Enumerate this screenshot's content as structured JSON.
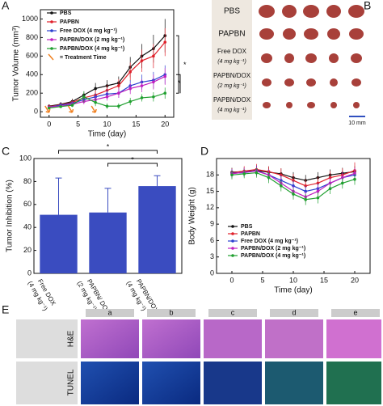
{
  "chart_data": [
    {
      "type": "line",
      "panel": "A",
      "y_label": "Tumor Volume (mm³)",
      "x_label": "Time (day)",
      "x": [
        0,
        2,
        4,
        6,
        8,
        10,
        12,
        14,
        16,
        18,
        20
      ],
      "xlim": [
        -1.5,
        21.5
      ],
      "xticks": [
        0,
        5,
        10,
        15,
        20
      ],
      "ylim": [
        -60,
        1100
      ],
      "yticks": [
        0,
        200,
        400,
        600,
        800,
        1000
      ],
      "series": [
        {
          "name": "PBS",
          "color": "#111111",
          "values": [
            60,
            80,
            110,
            180,
            250,
            280,
            310,
            480,
            600,
            680,
            820
          ],
          "errors": [
            20,
            25,
            30,
            40,
            60,
            60,
            70,
            110,
            130,
            150,
            180
          ]
        },
        {
          "name": "PAPBN",
          "color": "#e0202a",
          "values": [
            55,
            75,
            100,
            150,
            180,
            230,
            280,
            430,
            550,
            600,
            750
          ],
          "errors": [
            20,
            20,
            30,
            40,
            50,
            60,
            70,
            100,
            120,
            130,
            150
          ]
        },
        {
          "name": "Free DOX (4 mg kg⁻¹)",
          "color": "#2a3fd0",
          "values": [
            50,
            70,
            90,
            130,
            160,
            190,
            200,
            280,
            320,
            340,
            400
          ],
          "errors": [
            15,
            20,
            25,
            30,
            40,
            50,
            50,
            60,
            80,
            90,
            100
          ]
        },
        {
          "name": "PAPBN/DOX (2 mg kg⁻¹)",
          "color": "#c020c0",
          "values": [
            50,
            60,
            80,
            110,
            130,
            160,
            200,
            250,
            280,
            320,
            380
          ],
          "errors": [
            15,
            20,
            25,
            30,
            40,
            40,
            50,
            60,
            70,
            80,
            90
          ]
        },
        {
          "name": "PAPBN/DOX (4 mg kg⁻¹)",
          "color": "#20a030",
          "values": [
            40,
            55,
            70,
            160,
            100,
            60,
            60,
            110,
            150,
            160,
            200
          ],
          "errors": [
            15,
            15,
            20,
            60,
            40,
            30,
            30,
            40,
            40,
            50,
            60
          ]
        }
      ],
      "treatment_label": "= Treatment Time",
      "treatment_days": [
        0,
        4,
        8
      ],
      "treatment_color": "#f08020",
      "significance": [
        "*",
        "*"
      ]
    },
    {
      "type": "bar",
      "panel": "C",
      "y_label": "Tumor Inhibition (%)",
      "categories": [
        "Free DOX",
        "PAPBN/ DOX",
        "PAPBN/DOX"
      ],
      "category_sublabels": [
        "(4 mg kg⁻¹)",
        "(2 mg kg⁻¹)",
        "(4 mg kg⁻¹)"
      ],
      "values": [
        51,
        53,
        76
      ],
      "errors": [
        32,
        21,
        9
      ],
      "color": "#3a4cc0",
      "ylim": [
        0,
        100
      ],
      "yticks": [
        0,
        20,
        40,
        60,
        80,
        100
      ],
      "significance": [
        "*",
        "*"
      ]
    },
    {
      "type": "line",
      "panel": "D",
      "y_label": "Body Weight (g)",
      "x_label": "Time (day)",
      "x": [
        0,
        2,
        4,
        6,
        8,
        10,
        12,
        14,
        16,
        18,
        20
      ],
      "xlim": [
        -2.5,
        22.5
      ],
      "xticks": [
        0,
        5,
        10,
        15,
        20
      ],
      "ylim": [
        0,
        21
      ],
      "yticks": [
        0,
        3,
        6,
        9,
        12,
        15,
        18
      ],
      "series": [
        {
          "name": "PBS",
          "color": "#111111",
          "values": [
            18.5,
            18.6,
            18.8,
            18.5,
            18.2,
            17.5,
            17,
            17.5,
            18,
            18.3,
            18.6
          ],
          "errors": [
            0.8,
            0.8,
            0.9,
            1,
            1,
            1,
            1,
            1,
            1,
            1,
            1
          ]
        },
        {
          "name": "PAPBN",
          "color": "#e0202a",
          "values": [
            18.4,
            18.7,
            19,
            18.6,
            18,
            17,
            16,
            16.5,
            17.5,
            18,
            18.8
          ],
          "errors": [
            0.8,
            0.9,
            1,
            1,
            1.2,
            1.2,
            1.2,
            1.2,
            1.2,
            1.2,
            1.5
          ]
        },
        {
          "name": "Free DOX (4 mg kg⁻¹)",
          "color": "#2a3fd0",
          "values": [
            18.3,
            18.4,
            18.8,
            18,
            17,
            16,
            15,
            15.5,
            16.5,
            17.5,
            18
          ],
          "errors": [
            0.8,
            0.8,
            0.9,
            1,
            1,
            1,
            1,
            1,
            1,
            1,
            1
          ]
        },
        {
          "name": "PAPBN/DOX (2 mg kg⁻¹)",
          "color": "#c020c0",
          "values": [
            18.2,
            18.5,
            18.7,
            18,
            16.5,
            15,
            14,
            15,
            16.5,
            17.5,
            18.3
          ],
          "errors": [
            0.8,
            0.8,
            0.9,
            1,
            1,
            1,
            1,
            1,
            1,
            1,
            1
          ]
        },
        {
          "name": "PAPBN/DOX (4 mg kg⁻¹)",
          "color": "#20a030",
          "values": [
            18,
            18.2,
            18.4,
            17.5,
            16,
            14.5,
            13.5,
            13.8,
            15.5,
            16.5,
            17.2
          ],
          "errors": [
            0.8,
            0.8,
            0.9,
            1,
            1,
            1,
            1,
            1,
            1,
            1,
            1
          ]
        }
      ]
    }
  ],
  "panel_b": {
    "label": "B",
    "groups": [
      "PBS",
      "PAPBN",
      "Free DOX",
      "(4 mg kg⁻¹)",
      "PAPBN/DOX",
      "(2 mg kg⁻¹)",
      "PAPBN/DOX",
      "(4 mg kg⁻¹)"
    ],
    "scale": "10 mm"
  },
  "panel_e": {
    "label": "E",
    "columns": [
      "a",
      "b",
      "c",
      "d",
      "e"
    ],
    "rows": [
      "H&E",
      "TUNEL"
    ]
  }
}
